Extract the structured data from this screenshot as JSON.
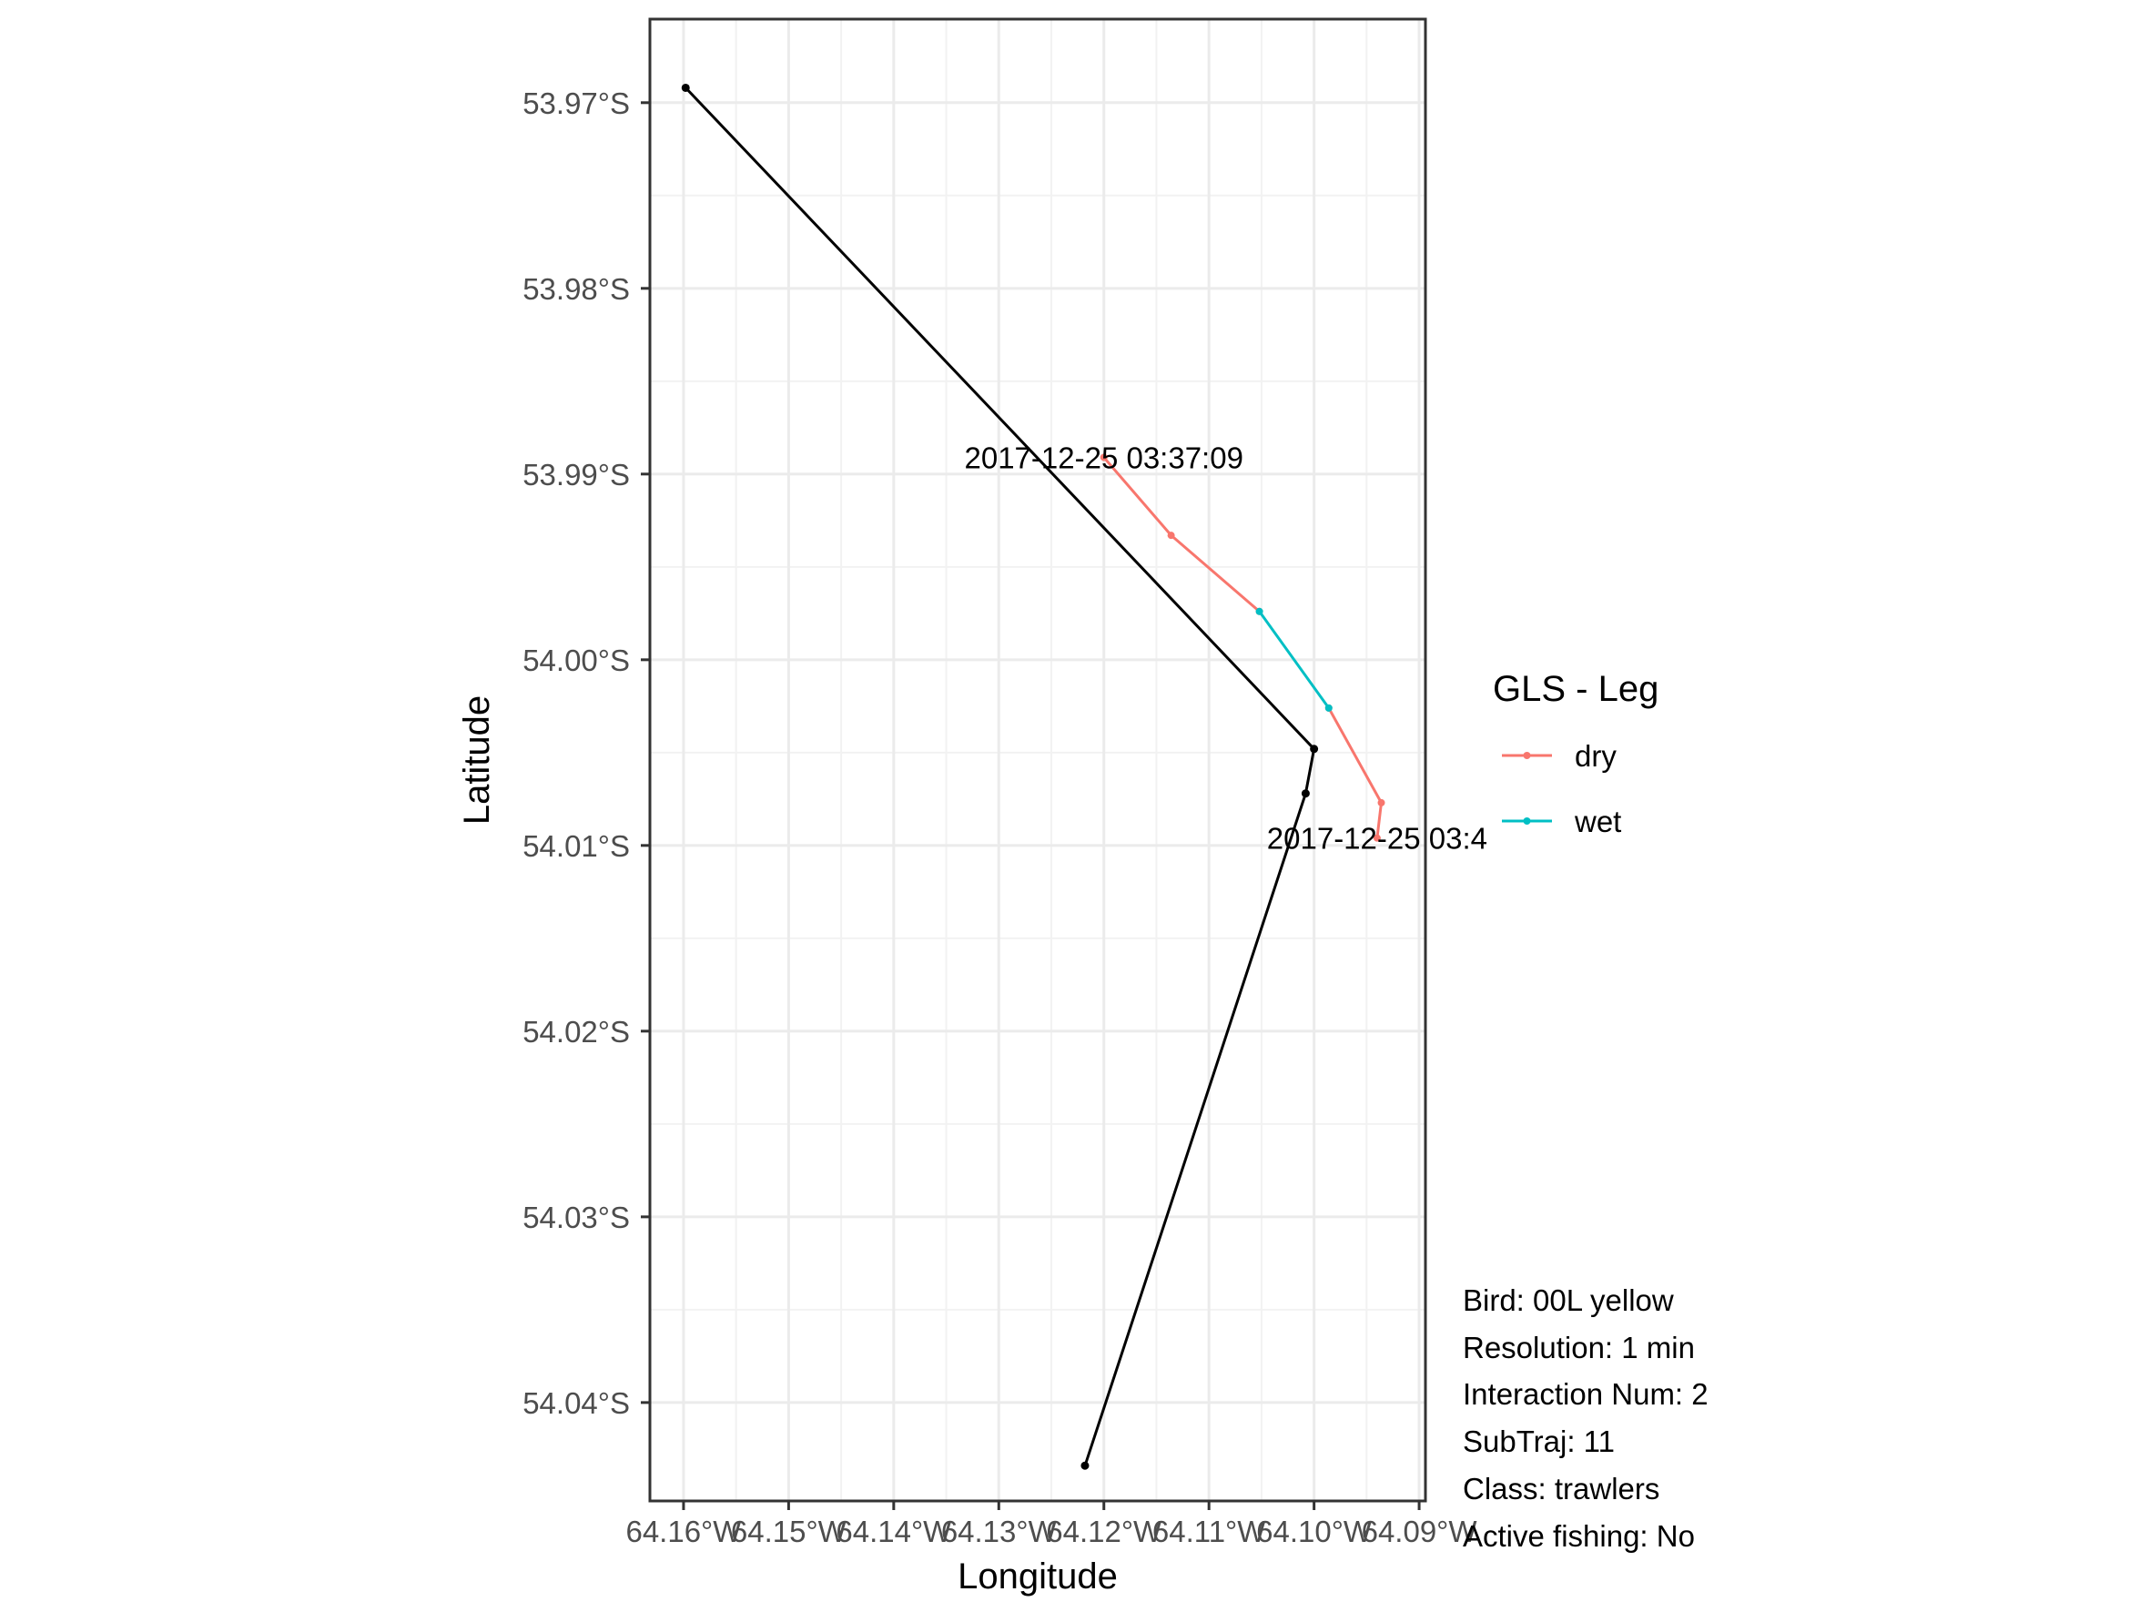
{
  "chart_data": {
    "type": "line",
    "xlabel": "Longitude",
    "ylabel": "Latitude",
    "xlim": [
      -64.1632,
      -64.0894
    ],
    "ylim": [
      -54.0453,
      -53.9655
    ],
    "x_ticks": [
      {
        "value": -64.16,
        "label": "64.16°W"
      },
      {
        "value": -64.15,
        "label": "64.15°W"
      },
      {
        "value": -64.14,
        "label": "64.14°W"
      },
      {
        "value": -64.13,
        "label": "64.13°W"
      },
      {
        "value": -64.12,
        "label": "64.12°W"
      },
      {
        "value": -64.11,
        "label": "64.11°W"
      },
      {
        "value": -64.1,
        "label": "64.10°W"
      },
      {
        "value": -64.09,
        "label": "64.09°W"
      }
    ],
    "y_ticks": [
      {
        "value": -53.97,
        "label": "53.97°S"
      },
      {
        "value": -53.98,
        "label": "53.98°S"
      },
      {
        "value": -53.99,
        "label": "53.99°S"
      },
      {
        "value": -54.0,
        "label": "54.00°S"
      },
      {
        "value": -54.01,
        "label": "54.01°S"
      },
      {
        "value": -54.02,
        "label": "54.02°S"
      },
      {
        "value": -54.03,
        "label": "54.03°S"
      },
      {
        "value": -54.04,
        "label": "54.04°S"
      }
    ],
    "grid": true,
    "vessel_track": {
      "color": "#000000",
      "points": [
        {
          "x": -64.1598,
          "y": -53.9692
        },
        {
          "x": -64.1,
          "y": -54.0048
        },
        {
          "x": -64.1008,
          "y": -54.0072
        },
        {
          "x": -64.1218,
          "y": -54.0434
        }
      ]
    },
    "series": [
      {
        "name": "dry",
        "color": "#F8766D",
        "segments": [
          [
            {
              "x": -64.12,
              "y": -53.9891
            },
            {
              "x": -64.1136,
              "y": -53.9933
            },
            {
              "x": -64.1052,
              "y": -53.9974
            }
          ],
          [
            {
              "x": -64.0986,
              "y": -54.0026
            },
            {
              "x": -64.0936,
              "y": -54.0077
            },
            {
              "x": -64.094,
              "y": -54.0096
            }
          ]
        ]
      },
      {
        "name": "wet",
        "color": "#00BFC4",
        "segments": [
          [
            {
              "x": -64.1052,
              "y": -53.9974
            },
            {
              "x": -64.0986,
              "y": -54.0026
            }
          ]
        ]
      }
    ],
    "annotations": [
      {
        "text": "2017-12-25 03:37:09",
        "x": -64.12,
        "y": -53.9891
      },
      {
        "text": "2017-12-25 03:4",
        "x": -64.094,
        "y": -54.0096
      }
    ],
    "legend": {
      "title": "GLS - Leg",
      "position": "right",
      "entries": [
        {
          "label": "dry",
          "color": "#F8766D"
        },
        {
          "label": "wet",
          "color": "#00BFC4"
        }
      ]
    },
    "info_lines": [
      "Bird: 00L yellow",
      "Resolution: 1 min",
      "Interaction Num: 2",
      "SubTraj: 11",
      "Class: trawlers",
      "Active fishing: No"
    ]
  }
}
